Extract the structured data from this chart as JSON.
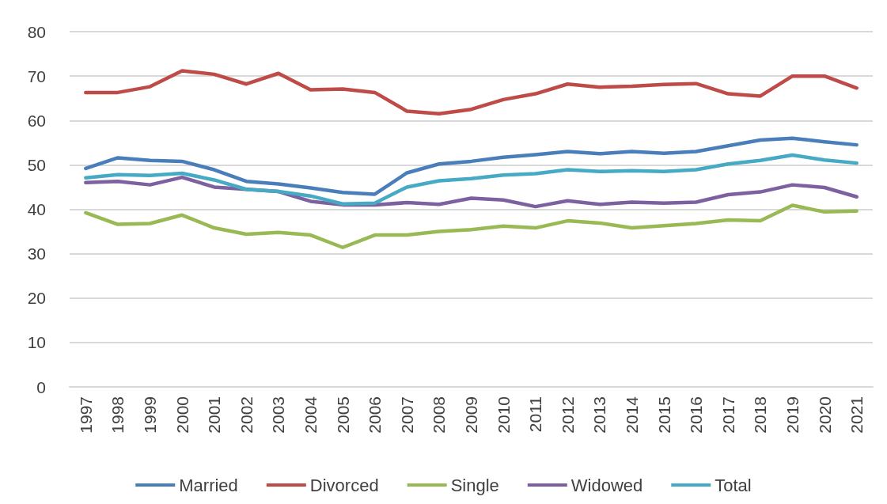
{
  "chart_data": {
    "type": "line",
    "categories": [
      "1997",
      "1998",
      "1999",
      "2000",
      "2001",
      "2002",
      "2003",
      "2004",
      "2005",
      "2006",
      "2007",
      "2008",
      "2009",
      "2010",
      "2011",
      "2012",
      "2013",
      "2014",
      "2015",
      "2016",
      "2017",
      "2018",
      "2019",
      "2020",
      "2021"
    ],
    "series": [
      {
        "name": "Married",
        "color": "#4a7ebb",
        "values": [
          49.2,
          51.6,
          51.0,
          50.8,
          48.9,
          46.3,
          45.7,
          44.8,
          43.8,
          43.4,
          48.2,
          50.2,
          50.8,
          51.7,
          52.3,
          53.0,
          52.5,
          53.0,
          52.6,
          53.0,
          54.3,
          55.6,
          56.0,
          55.2,
          54.5
        ]
      },
      {
        "name": "Divorced",
        "color": "#be4b48",
        "values": [
          66.3,
          66.3,
          67.6,
          71.2,
          70.4,
          68.2,
          70.6,
          66.9,
          67.1,
          66.3,
          62.1,
          61.5,
          62.5,
          64.7,
          66.0,
          68.2,
          67.5,
          67.7,
          68.1,
          68.3,
          66.0,
          65.5,
          70.0,
          70.0,
          67.3
        ]
      },
      {
        "name": "Single",
        "color": "#98b954",
        "values": [
          39.2,
          36.6,
          36.8,
          38.7,
          35.8,
          34.4,
          34.8,
          34.2,
          31.4,
          34.2,
          34.2,
          35.0,
          35.4,
          36.2,
          35.8,
          37.4,
          36.9,
          35.8,
          36.3,
          36.8,
          37.6,
          37.4,
          40.9,
          39.4,
          39.6
        ]
      },
      {
        "name": "Widowed",
        "color": "#7d60a0",
        "values": [
          46.0,
          46.3,
          45.5,
          47.2,
          45.0,
          44.5,
          44.0,
          41.8,
          41.0,
          41.0,
          41.5,
          41.1,
          42.5,
          42.1,
          40.6,
          41.9,
          41.1,
          41.6,
          41.4,
          41.6,
          43.3,
          43.9,
          45.5,
          44.9,
          42.8
        ]
      },
      {
        "name": "Total",
        "color": "#46aac5",
        "values": [
          47.1,
          47.8,
          47.6,
          48.1,
          46.6,
          44.5,
          44.0,
          43.0,
          41.2,
          41.4,
          45.0,
          46.4,
          46.9,
          47.7,
          48.0,
          48.9,
          48.5,
          48.7,
          48.5,
          48.9,
          50.2,
          51.0,
          52.2,
          51.1,
          50.4
        ]
      }
    ],
    "ylim": [
      0,
      80
    ],
    "yticks": [
      0,
      10,
      20,
      30,
      40,
      50,
      60,
      70,
      80
    ],
    "grid": "y",
    "legend": "bottom",
    "marker": "none",
    "line_style": "solid"
  }
}
